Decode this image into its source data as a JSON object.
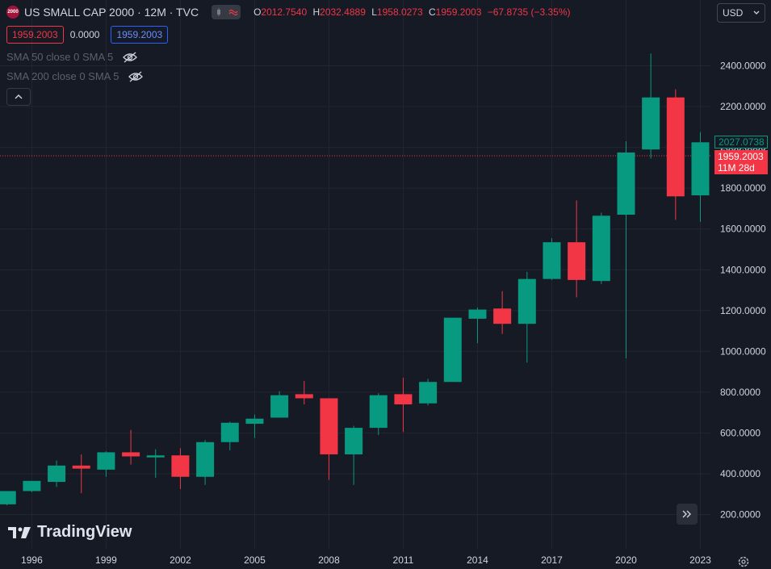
{
  "header": {
    "symbol_logo_text": "2000",
    "title": "US SMALL CAP 2000 · 12M · TVC",
    "ohlc": {
      "o_label": "O",
      "o_value": "2012.7540",
      "h_label": "H",
      "h_value": "2032.4889",
      "l_label": "L",
      "l_value": "1958.0273",
      "c_label": "C",
      "c_value": "1959.2003",
      "change": "−67.8735 (−3.35%)"
    },
    "bid": "1959.2003",
    "spread": "0.0000",
    "ask": "1959.2003"
  },
  "indicators": [
    {
      "label": "SMA 50 close 0 SMA 5",
      "icon": "eye-off-icon"
    },
    {
      "label": "SMA 200 close 0 SMA 5",
      "icon": "eye-off-icon"
    }
  ],
  "currency": "USD",
  "price_tags": {
    "high": "2027.0738",
    "current": "1959.2003",
    "countdown": "11M 28d"
  },
  "brand": "TradingView",
  "colors": {
    "up": "#089981",
    "down": "#f23645",
    "background": "#161a25",
    "grid": "#232631"
  },
  "chart_data": {
    "type": "candlestick",
    "y_axis_ticks": [
      "200.0000",
      "400.0000",
      "600.0000",
      "800.0000",
      "1000.0000",
      "1200.0000",
      "1400.0000",
      "1600.0000",
      "1800.0000",
      "2000.0000",
      "2200.0000",
      "2400.0000"
    ],
    "x_axis_ticks": [
      "1996",
      "1999",
      "2002",
      "2005",
      "2008",
      "2011",
      "2014",
      "2017",
      "2020",
      "2023"
    ],
    "ylim": [
      0,
      2600
    ],
    "grid": true,
    "last_price": 1959.2003,
    "candles": [
      {
        "year": 1995,
        "open": 250,
        "high": 315,
        "low": 245,
        "close": 315
      },
      {
        "year": 1996,
        "open": 315,
        "high": 365,
        "low": 310,
        "close": 365
      },
      {
        "year": 1997,
        "open": 360,
        "high": 465,
        "low": 335,
        "close": 440
      },
      {
        "year": 1998,
        "open": 440,
        "high": 495,
        "low": 305,
        "close": 425
      },
      {
        "year": 1999,
        "open": 420,
        "high": 510,
        "low": 385,
        "close": 505
      },
      {
        "year": 2000,
        "open": 505,
        "high": 615,
        "low": 445,
        "close": 485
      },
      {
        "year": 2001,
        "open": 480,
        "high": 520,
        "low": 380,
        "close": 490
      },
      {
        "year": 2002,
        "open": 490,
        "high": 525,
        "low": 325,
        "close": 385
      },
      {
        "year": 2003,
        "open": 385,
        "high": 565,
        "low": 345,
        "close": 555
      },
      {
        "year": 2004,
        "open": 555,
        "high": 655,
        "low": 515,
        "close": 650
      },
      {
        "year": 2005,
        "open": 645,
        "high": 690,
        "low": 575,
        "close": 670
      },
      {
        "year": 2006,
        "open": 675,
        "high": 805,
        "low": 675,
        "close": 785
      },
      {
        "year": 2007,
        "open": 790,
        "high": 855,
        "low": 740,
        "close": 770
      },
      {
        "year": 2008,
        "open": 770,
        "high": 770,
        "low": 370,
        "close": 495
      },
      {
        "year": 2009,
        "open": 495,
        "high": 635,
        "low": 345,
        "close": 625
      },
      {
        "year": 2010,
        "open": 625,
        "high": 795,
        "low": 590,
        "close": 785
      },
      {
        "year": 2011,
        "open": 790,
        "high": 870,
        "low": 605,
        "close": 740
      },
      {
        "year": 2012,
        "open": 745,
        "high": 865,
        "low": 735,
        "close": 850
      },
      {
        "year": 2013,
        "open": 850,
        "high": 1165,
        "low": 850,
        "close": 1165
      },
      {
        "year": 2014,
        "open": 1160,
        "high": 1215,
        "low": 1040,
        "close": 1205
      },
      {
        "year": 2015,
        "open": 1210,
        "high": 1295,
        "low": 1085,
        "close": 1135
      },
      {
        "year": 2016,
        "open": 1135,
        "high": 1390,
        "low": 945,
        "close": 1355
      },
      {
        "year": 2017,
        "open": 1355,
        "high": 1555,
        "low": 1350,
        "close": 1535
      },
      {
        "year": 2018,
        "open": 1535,
        "high": 1740,
        "low": 1265,
        "close": 1350
      },
      {
        "year": 2019,
        "open": 1345,
        "high": 1680,
        "low": 1330,
        "close": 1665
      },
      {
        "year": 2020,
        "open": 1670,
        "high": 2030,
        "low": 965,
        "close": 1975
      },
      {
        "year": 2021,
        "open": 1990,
        "high": 2460,
        "low": 1945,
        "close": 2245
      },
      {
        "year": 2022,
        "open": 2245,
        "high": 2285,
        "low": 1645,
        "close": 1760
      },
      {
        "year": 2023,
        "open": 1765,
        "high": 2075,
        "low": 1635,
        "close": 2025
      }
    ]
  }
}
